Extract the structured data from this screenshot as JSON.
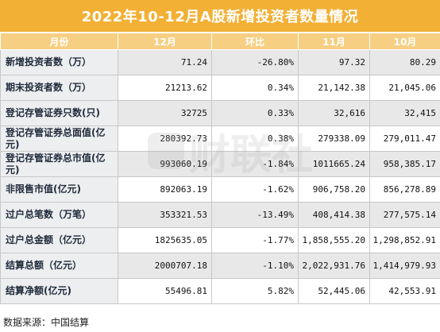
{
  "title": "2022年10-12月A股新增投资者数量情况",
  "headers": [
    "月份",
    "12月",
    "环比",
    "11月",
    "10月"
  ],
  "rows": [
    {
      "label": "新增投资者数（万）",
      "dec": "71.24",
      "mom": "-26.80%",
      "nov": "97.32",
      "oct": "80.29"
    },
    {
      "label": "期末投资者数（万）",
      "dec": "21213.62",
      "mom": "0.34%",
      "nov": "21,142.38",
      "oct": "21,045.06"
    },
    {
      "label": "登记存管证券只数(只)",
      "dec": "32725",
      "mom": "0.33%",
      "nov": "32,616",
      "oct": "32,415"
    },
    {
      "label": "登记存管证券总面值(亿元)",
      "dec": "280392.73",
      "mom": "0.38%",
      "nov": "279338.09",
      "oct": "279,011.47"
    },
    {
      "label": "登记存管证券总市值(亿元)",
      "dec": "993060.19",
      "mom": "-1.84%",
      "nov": "1011665.24",
      "oct": "958,385.17"
    },
    {
      "label": "非限售市值(亿元)",
      "dec": "892063.19",
      "mom": "-1.62%",
      "nov": "906,758.20",
      "oct": "856,278.89"
    },
    {
      "label": "过户总笔数（万笔）",
      "dec": "353321.53",
      "mom": "-13.49%",
      "nov": "408,414.38",
      "oct": "277,575.14"
    },
    {
      "label": "过户总金额（亿元）",
      "dec": "1825635.05",
      "mom": "-1.77%",
      "nov": "1,858,555.20",
      "oct": "1,298,852.91"
    },
    {
      "label": "结算总额（亿元）",
      "dec": "2000707.18",
      "mom": "-1.10%",
      "nov": "2,022,931.76",
      "oct": "1,414,979.93"
    },
    {
      "label": "结算净额(亿元)",
      "dec": "55496.81",
      "mom": "5.82%",
      "nov": "52,445.06",
      "oct": "42,553.91"
    }
  ],
  "source": "数据来源：中国结算",
  "watermark": "财联社",
  "colors": {
    "title_bg": "#f2b035",
    "header_bg": "#f6cf83",
    "label_bg": "#eceef0",
    "row_alt": "#e8e8e8"
  }
}
